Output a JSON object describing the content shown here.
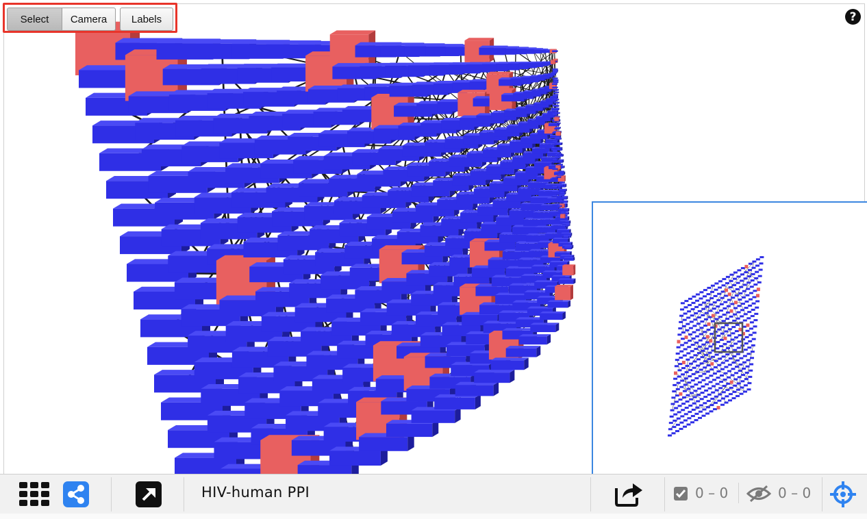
{
  "toolbar": {
    "select_label": "Select",
    "camera_label": "Camera",
    "labels_label": "Labels",
    "active_mode": "Select"
  },
  "help": {
    "glyph": "?"
  },
  "bottom_bar": {
    "network_title": "HIV-human PPI",
    "selected_count": "0 – 0",
    "hidden_count": "0 – 0"
  },
  "icons": {
    "grid": "grid-icon",
    "share": "share-icon",
    "open_external": "open-external-icon",
    "export": "export-icon",
    "checkbox": "checkbox-icon",
    "eye_slash": "eye-slash-icon",
    "crosshair": "crosshair-icon"
  },
  "colors": {
    "node_blue": "#2f2fe6",
    "node_blue_top": "#4a4af5",
    "node_blue_side": "#1d1d9c",
    "node_red": "#e86060",
    "node_red_side": "#b33c3c",
    "edge": "#1a1a1a",
    "accent": "#2f83f0",
    "highlight_border": "#e8342a"
  }
}
